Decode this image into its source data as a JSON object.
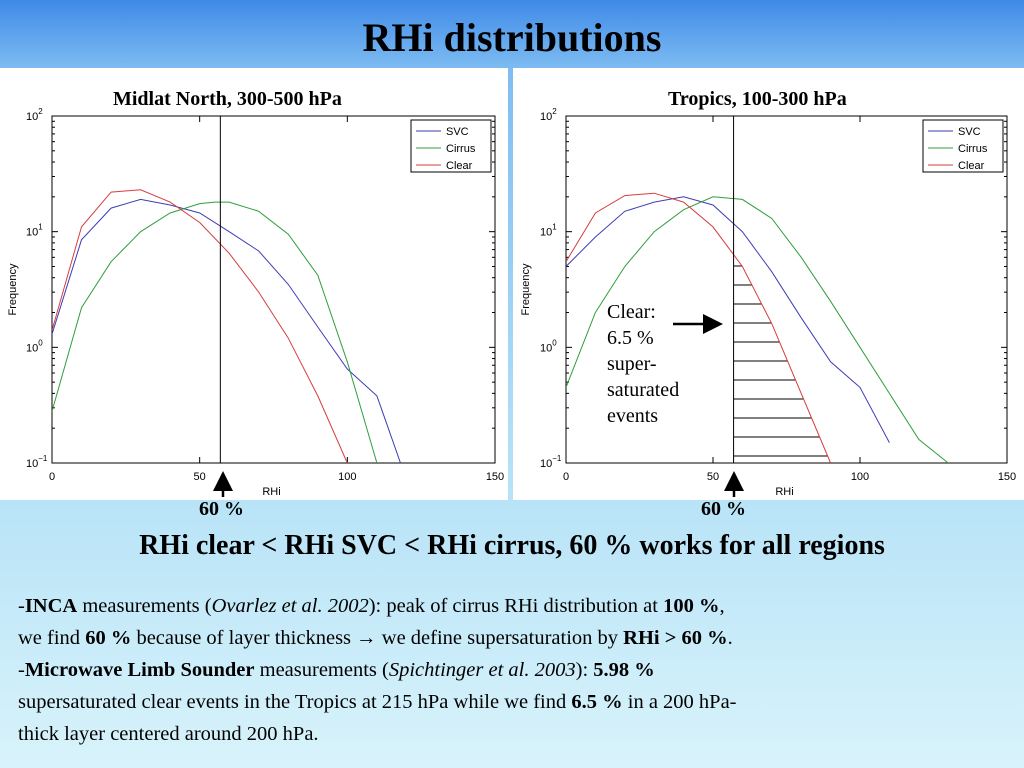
{
  "title": "RHi distributions",
  "headline": "RHi clear < RHi SVC < RHi cirrus, 60 % works for all regions",
  "colors": {
    "SVC": "#3d3db5",
    "Cirrus": "#2f9e3b",
    "Clear": "#d63d3d"
  },
  "annotation": {
    "l1": "Clear:",
    "l2": "6.5 %",
    "l3": "super-",
    "l4": "saturated",
    "l5": "events"
  },
  "bullets": {
    "b1_dash": "-",
    "b1_bold": "INCA",
    "b1_t1": " measurements (",
    "b1_ital": "Ovarlez et al. 2002",
    "b1_t2": "): peak of cirrus RHi distribution at ",
    "b1_bold2": "100 %",
    "b1_t3": ",",
    "b1_l2_t1": "we find ",
    "b1_l2_bold": "60 %",
    "b1_l2_t2": " because of  layer thickness → we define supersaturation by ",
    "b1_l2_bold2": "RHi > 60 %",
    "b1_l2_t3": ".",
    "b2_dash": "-",
    "b2_bold": "Microwave Limb Sounder",
    "b2_t1": " measurements (",
    "b2_ital": "Spichtinger et al. 2003",
    "b2_t2": "): ",
    "b2_bold2": "5.98 %",
    "b2_l2_t1": "supersaturated clear events in the Tropics at 215 hPa while we find ",
    "b2_l2_bold": "6.5 %",
    "b2_l2_t2": " in a 200 hPa-",
    "b2_l3": "thick layer centered around 200 hPa."
  },
  "chart_data": [
    {
      "type": "line",
      "title": "Midlat North, 300-500 hPa",
      "xlabel": "RHi",
      "ylabel": "Frequency",
      "xlim": [
        0,
        150
      ],
      "ylim": [
        0.1,
        100
      ],
      "yscale": "log",
      "xticks": [
        0,
        50,
        100,
        150
      ],
      "yticks": [
        0.1,
        1,
        10,
        100
      ],
      "ytick_labels": [
        {
          "base": "10",
          "exp": "−1"
        },
        {
          "base": "10",
          "exp": "0"
        },
        {
          "base": "10",
          "exp": "1"
        },
        {
          "base": "10",
          "exp": "2"
        }
      ],
      "vline": 57,
      "marker_label": "60 %",
      "legend": "top-right",
      "series": [
        {
          "name": "SVC",
          "x": [
            0,
            10,
            20,
            30,
            40,
            50,
            60,
            70,
            80,
            90,
            100,
            110,
            118
          ],
          "y": [
            1.3,
            8.5,
            16,
            19,
            17,
            14.5,
            10,
            6.8,
            3.5,
            1.5,
            0.65,
            0.38,
            0.1
          ]
        },
        {
          "name": "Cirrus",
          "x": [
            0,
            10,
            20,
            30,
            40,
            50,
            55,
            60,
            70,
            80,
            90,
            100,
            110
          ],
          "y": [
            0.28,
            2.2,
            5.5,
            10,
            14.5,
            17.5,
            18,
            18,
            15,
            9.5,
            4.2,
            0.75,
            0.1
          ]
        },
        {
          "name": "Clear",
          "x": [
            0,
            10,
            20,
            30,
            40,
            50,
            60,
            70,
            80,
            90,
            100
          ],
          "y": [
            1.4,
            11,
            22,
            23,
            18,
            12,
            6.5,
            3,
            1.2,
            0.38,
            0.1
          ]
        }
      ]
    },
    {
      "type": "line",
      "title": "Tropics, 100-300 hPa",
      "xlabel": "RHi",
      "ylabel": "Frequency",
      "xlim": [
        0,
        150
      ],
      "ylim": [
        0.1,
        100
      ],
      "yscale": "log",
      "xticks": [
        0,
        50,
        100,
        150
      ],
      "yticks": [
        0.1,
        1,
        10,
        100
      ],
      "ytick_labels": [
        {
          "base": "10",
          "exp": "−1"
        },
        {
          "base": "10",
          "exp": "0"
        },
        {
          "base": "10",
          "exp": "1"
        },
        {
          "base": "10",
          "exp": "2"
        }
      ],
      "vline": 57,
      "marker_label": "60 %",
      "legend": "top-right",
      "series": [
        {
          "name": "SVC",
          "x": [
            0,
            10,
            20,
            30,
            40,
            50,
            60,
            70,
            80,
            90,
            100,
            110
          ],
          "y": [
            5,
            9,
            15,
            18,
            20,
            17,
            10,
            4.5,
            1.8,
            0.75,
            0.45,
            0.15
          ]
        },
        {
          "name": "Cirrus",
          "x": [
            0,
            10,
            20,
            30,
            40,
            50,
            60,
            70,
            80,
            90,
            100,
            110,
            120,
            130
          ],
          "y": [
            0.45,
            2,
            5,
            10,
            15.5,
            20,
            19,
            13,
            6,
            2.5,
            1,
            0.4,
            0.16,
            0.1
          ]
        },
        {
          "name": "Clear",
          "x": [
            0,
            10,
            20,
            30,
            40,
            50,
            60,
            70,
            80,
            90
          ],
          "y": [
            5.5,
            14.5,
            20.5,
            21.5,
            18,
            11,
            5,
            1.6,
            0.4,
            0.1
          ]
        }
      ]
    }
  ]
}
